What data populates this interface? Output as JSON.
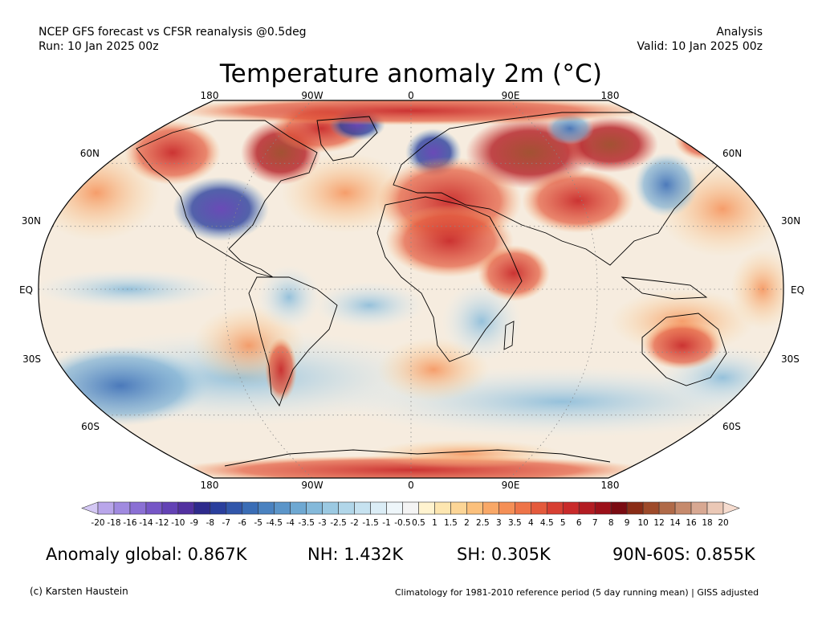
{
  "header": {
    "left_line1": "NCEP GFS forecast vs CFSR reanalysis @0.5deg",
    "left_line2": "Run: 10 Jan 2025 00z",
    "right_line1": "Analysis",
    "right_line2": "Valid: 10 Jan 2025 00z"
  },
  "title": "Temperature anomaly 2m (°C)",
  "map": {
    "projection": "robinson",
    "lon_labels_top": [
      "180",
      "90W",
      "0",
      "90E",
      "180"
    ],
    "lon_labels_bottom": [
      "180",
      "90W",
      "0",
      "90E",
      "180"
    ],
    "lat_labels_left": [
      "60N",
      "30N",
      "EQ",
      "30S",
      "60S"
    ],
    "lat_labels_right": [
      "60N",
      "30N",
      "EQ",
      "30S",
      "60S"
    ]
  },
  "colorbar": {
    "labels": [
      "-20",
      "-18",
      "-16",
      "-14",
      "-12",
      "-10",
      "-9",
      "-8",
      "-7",
      "-6",
      "-5",
      "-4.5",
      "-4",
      "-3.5",
      "-3",
      "-2.5",
      "-2",
      "-1.5",
      "-1",
      "-0.5",
      "0.5",
      "1",
      "1.5",
      "2",
      "2.5",
      "3",
      "3.5",
      "4",
      "4.5",
      "5",
      "6",
      "7",
      "8",
      "9",
      "10",
      "12",
      "14",
      "16",
      "18",
      "20"
    ],
    "colors": [
      "#d4c8f4",
      "#b9a6ea",
      "#a08ae0",
      "#8a6fd4",
      "#7656c6",
      "#6342b5",
      "#5231a0",
      "#2e2a8c",
      "#2a3f9d",
      "#3156aa",
      "#3a6db6",
      "#4a82c0",
      "#5b95c9",
      "#6ea8d2",
      "#84b9da",
      "#9bc9e2",
      "#b1d6e9",
      "#c6e2f0",
      "#dbedf6",
      "#eef6fa",
      "#f4f4f4",
      "#fff3cf",
      "#fde6b0",
      "#fcd596",
      "#fbc07c",
      "#f9a867",
      "#f58f56",
      "#ee7448",
      "#e45a3c",
      "#d73f32",
      "#c92a2a",
      "#b31c22",
      "#9c1019",
      "#7a0b12",
      "#8a2c16",
      "#9e4a2a",
      "#b06a48",
      "#c68a6c",
      "#d8a892",
      "#ebc8b6",
      "#f6dccf"
    ]
  },
  "stats": {
    "global": "Anomaly global: 0.867K",
    "nh": "NH: 1.432K",
    "sh": "SH: 0.305K",
    "arctic": "90N-60S: 0.855K"
  },
  "footer": {
    "credit": "(c) Karsten Haustein",
    "climatology": "Climatology for 1981-2010 reference period (5 day running mean) | GISS adjusted"
  }
}
